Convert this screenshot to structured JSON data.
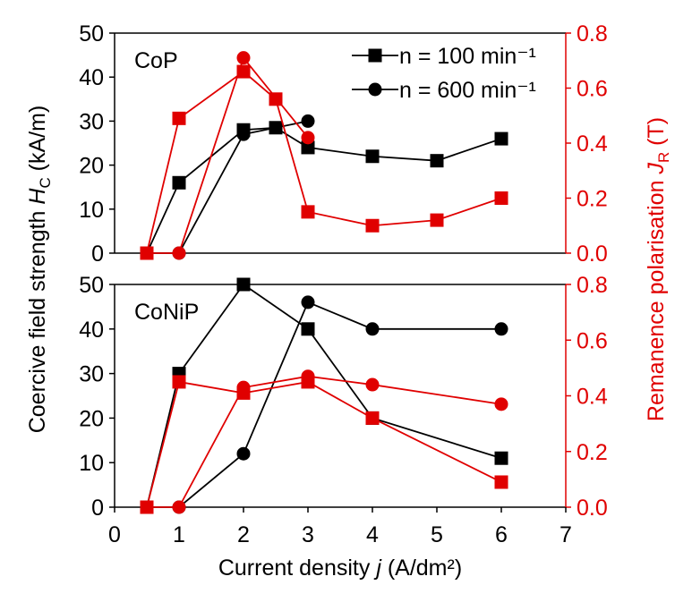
{
  "chart_data": [
    {
      "type": "line",
      "panel_label": "CoP",
      "x_ticks": [],
      "y_left_ticks": [
        "0",
        "10",
        "20",
        "30",
        "40",
        "50"
      ],
      "y_right_ticks": [
        "0.0",
        "0.2",
        "0.4",
        "0.6",
        "0.8"
      ],
      "ylim_left": [
        0,
        50
      ],
      "ylim_right": [
        0,
        0.8
      ],
      "series": [
        {
          "name": "Hc n=100",
          "axis": "left",
          "color": "#000000",
          "marker": "square",
          "x": [
            0.5,
            1,
            2,
            2.5,
            3,
            4,
            5,
            6
          ],
          "values": [
            0,
            16,
            28,
            28.5,
            24,
            22,
            21,
            26
          ]
        },
        {
          "name": "Hc n=600",
          "axis": "left",
          "color": "#000000",
          "marker": "circle",
          "x": [
            0.5,
            1,
            2,
            3
          ],
          "values": [
            0,
            0,
            27,
            30
          ]
        },
        {
          "name": "Jr n=100",
          "axis": "right",
          "color": "#e00000",
          "marker": "square",
          "x": [
            0.5,
            1,
            2,
            2.5,
            3,
            4,
            5,
            6
          ],
          "values": [
            0,
            0.49,
            0.66,
            0.56,
            0.15,
            0.1,
            0.12,
            0.2
          ]
        },
        {
          "name": "Jr n=600",
          "axis": "right",
          "color": "#e00000",
          "marker": "circle",
          "x": [
            0.5,
            1,
            2,
            3
          ],
          "values": [
            0,
            0,
            0.71,
            0.42
          ]
        }
      ]
    },
    {
      "type": "line",
      "panel_label": "CoNiP",
      "x_ticks": [
        "0",
        "1",
        "2",
        "3",
        "4",
        "5",
        "6",
        "7"
      ],
      "y_left_ticks": [
        "0",
        "10",
        "20",
        "30",
        "40",
        "50"
      ],
      "y_right_ticks": [
        "0.0",
        "0.2",
        "0.4",
        "0.6",
        "0.8"
      ],
      "ylim_left": [
        0,
        50
      ],
      "ylim_right": [
        0,
        0.8
      ],
      "series": [
        {
          "name": "Hc n=100",
          "axis": "left",
          "color": "#000000",
          "marker": "square",
          "x": [
            0.5,
            1,
            2,
            3,
            4,
            6
          ],
          "values": [
            0,
            30,
            50,
            40,
            20,
            11
          ]
        },
        {
          "name": "Hc n=600",
          "axis": "left",
          "color": "#000000",
          "marker": "circle",
          "x": [
            0.5,
            1,
            2,
            3,
            4,
            6
          ],
          "values": [
            0,
            0,
            12,
            46,
            40,
            40
          ]
        },
        {
          "name": "Jr n=100",
          "axis": "right",
          "color": "#e00000",
          "marker": "square",
          "x": [
            0.5,
            1,
            2,
            3,
            4,
            6
          ],
          "values": [
            0,
            0.45,
            0.41,
            0.45,
            0.32,
            0.09
          ]
        },
        {
          "name": "Jr n=600",
          "axis": "right",
          "color": "#e00000",
          "marker": "circle",
          "x": [
            0.5,
            1,
            2,
            3,
            4,
            6
          ],
          "values": [
            0,
            0,
            0.43,
            0.47,
            0.44,
            0.37
          ]
        }
      ]
    }
  ],
  "xlim": [
    0,
    7
  ],
  "legend": {
    "position": "top-right",
    "entries": [
      {
        "marker": "square",
        "label": "n = 100 min⁻¹"
      },
      {
        "marker": "circle",
        "label": "n = 600 min⁻¹"
      }
    ]
  },
  "axes": {
    "xlabel_main": "Current density ",
    "xlabel_var": "j",
    "xlabel_unit": " (A/dm²)",
    "ylabel_left_main": "Coercive field strength ",
    "ylabel_left_var": "H",
    "ylabel_left_sub": "C",
    "ylabel_left_unit": " (kA/m)",
    "ylabel_right_main": "Remanence polarisation ",
    "ylabel_right_var": "J",
    "ylabel_right_sub": "R",
    "ylabel_right_unit": " (T)",
    "left_color": "#000000",
    "right_color": "#e00000"
  }
}
